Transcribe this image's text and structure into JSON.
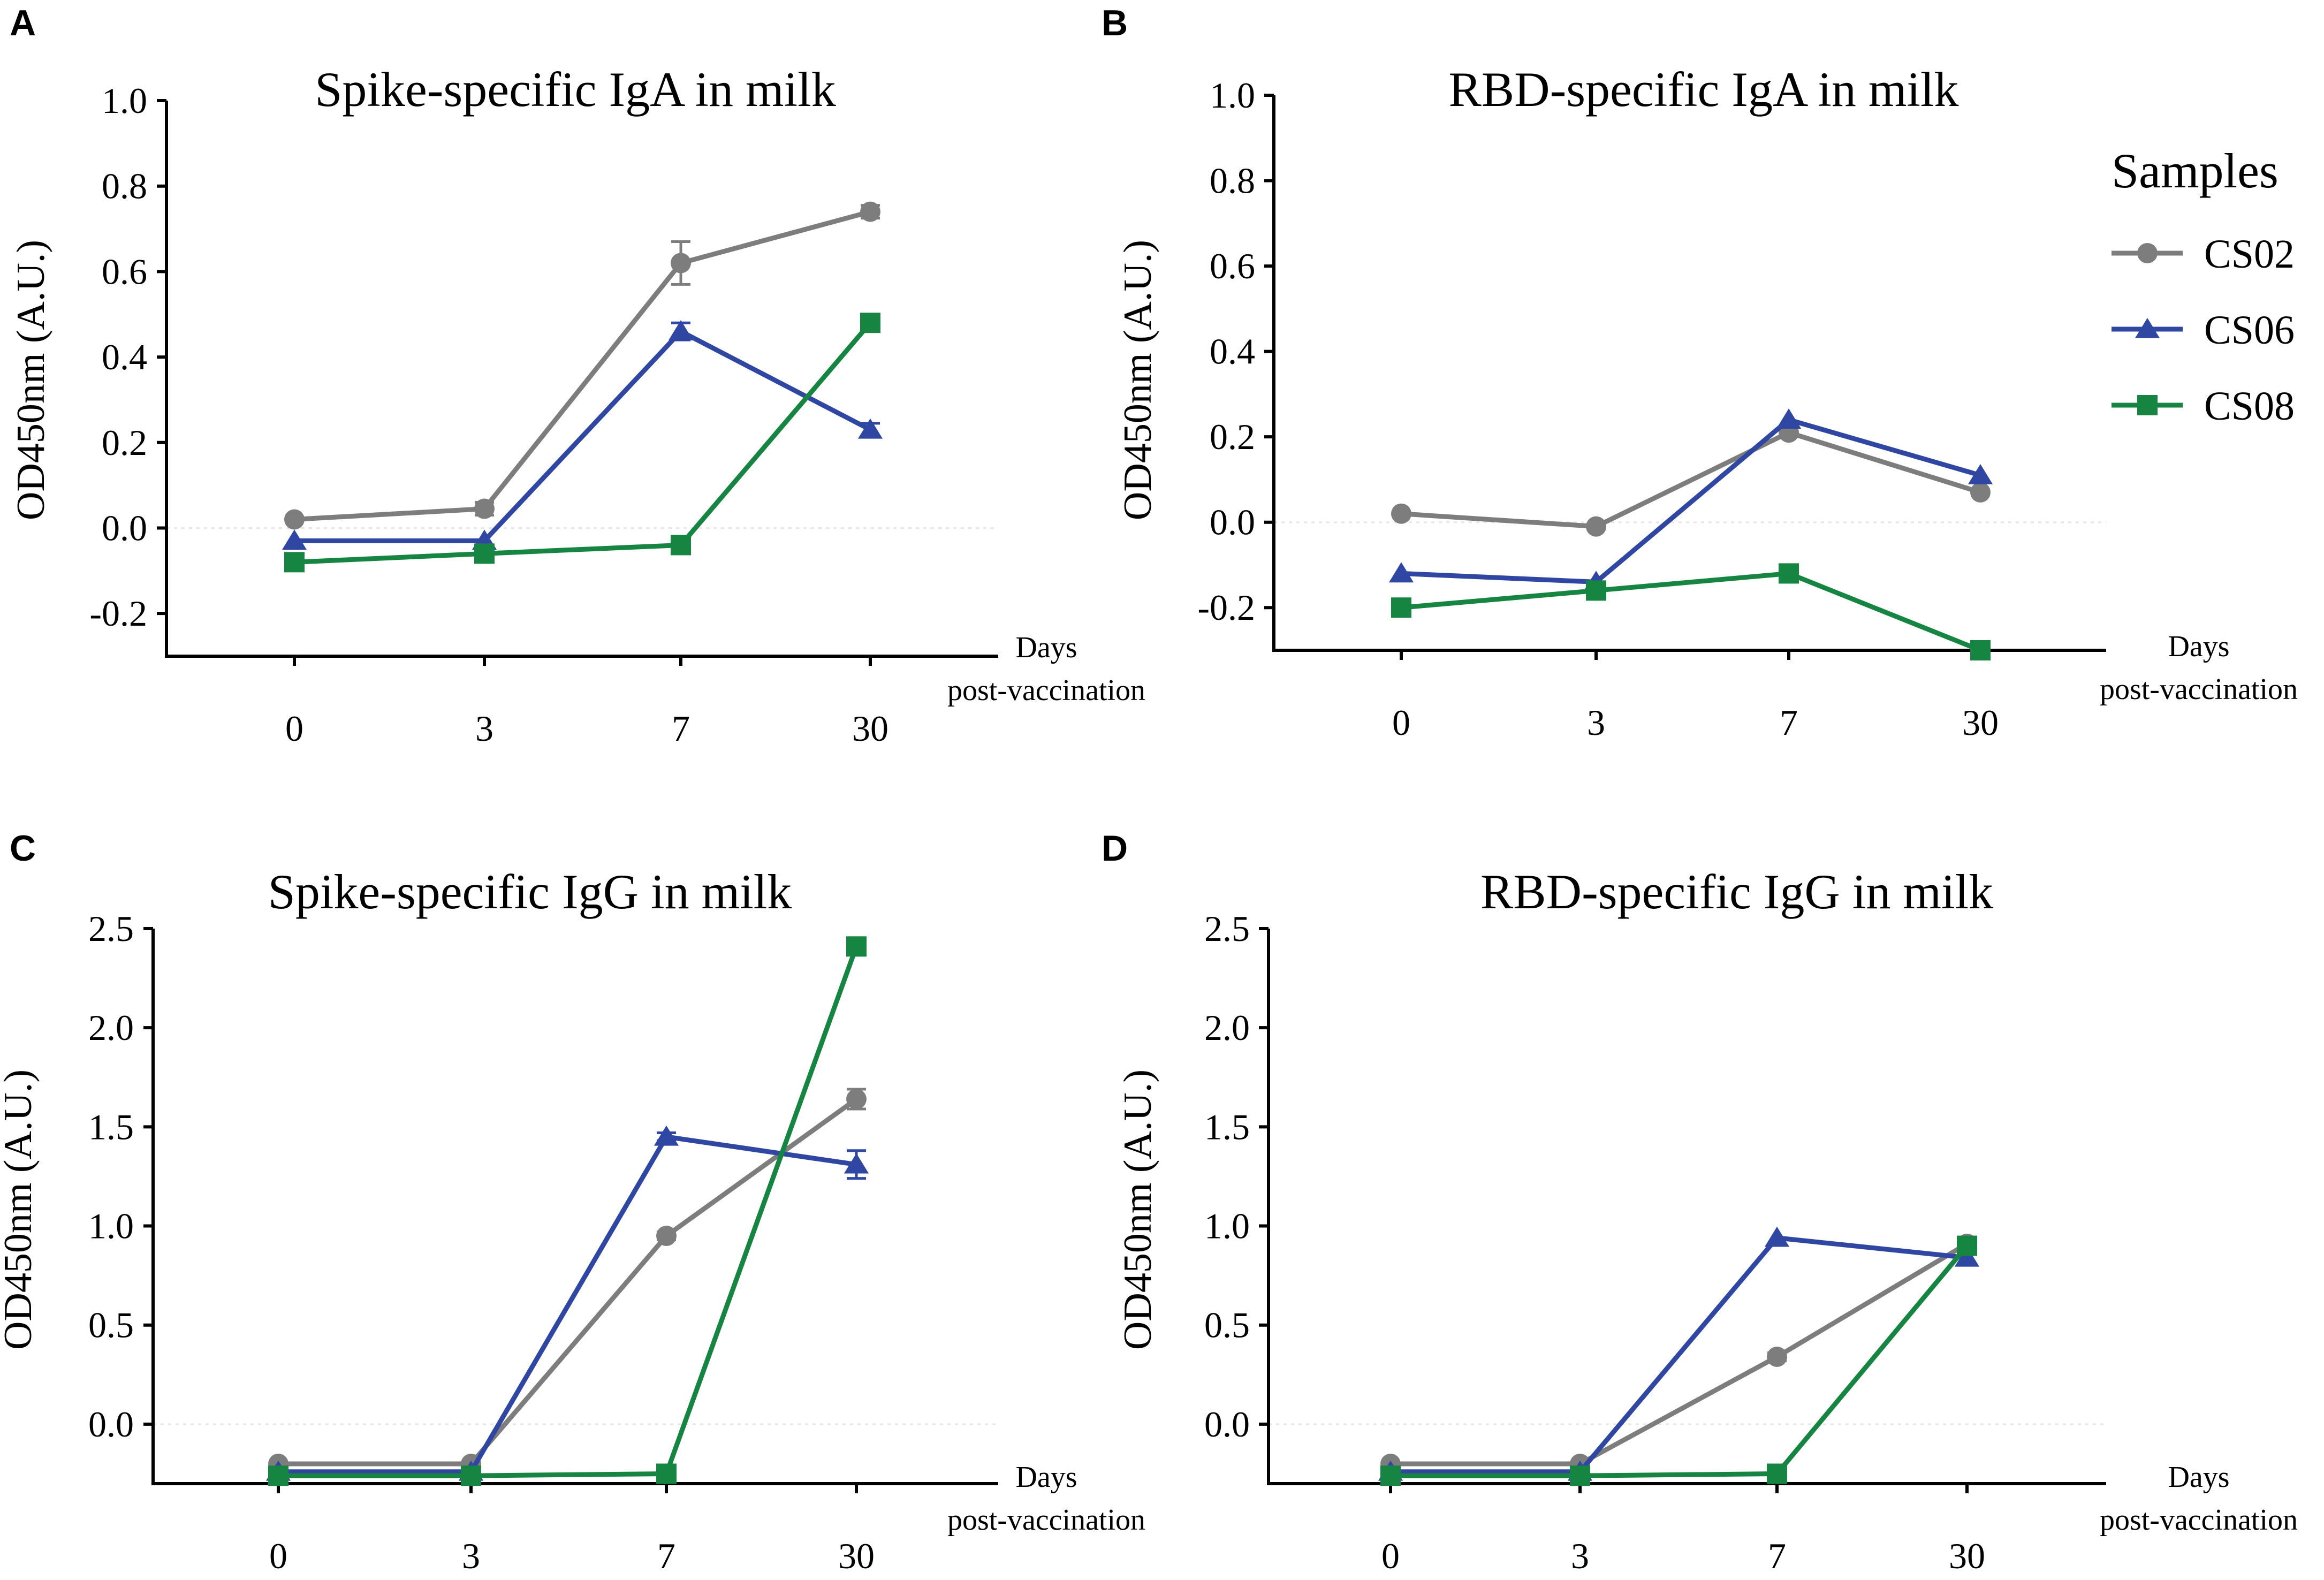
{
  "colors": {
    "CS02": "#7d7d7d",
    "CS06": "#2f46a3",
    "CS08": "#178542"
  },
  "legend": {
    "title": "Samples",
    "entries": [
      "CS02",
      "CS06",
      "CS08"
    ],
    "position": "right"
  },
  "chart_data": [
    {
      "panel": "A",
      "type": "line",
      "title": "Spike-specific IgA in milk",
      "ylabel": "OD450nm (A.U.)",
      "xlabel": [
        "Days",
        "post-vaccination"
      ],
      "categories": [
        "0",
        "3",
        "7",
        "30"
      ],
      "ylim": [
        -0.3,
        1.0
      ],
      "yticks": [
        "-0.2",
        "0.0",
        "0.2",
        "0.4",
        "0.6",
        "0.8",
        "1.0"
      ],
      "series": [
        {
          "name": "CS02",
          "marker": "circle",
          "values": [
            0.02,
            0.045,
            0.62,
            0.74
          ],
          "errors": [
            0.0,
            0.015,
            0.05,
            0.015
          ]
        },
        {
          "name": "CS06",
          "marker": "triangle",
          "values": [
            -0.03,
            -0.03,
            0.46,
            0.23
          ],
          "errors": [
            0.0,
            0.0,
            0.02,
            0.015
          ]
        },
        {
          "name": "CS08",
          "marker": "square",
          "values": [
            -0.08,
            -0.06,
            -0.04,
            0.48
          ],
          "errors": [
            0.0,
            0.0,
            0.0,
            0.0
          ]
        }
      ]
    },
    {
      "panel": "B",
      "type": "line",
      "title": "RBD-specific IgA in milk",
      "ylabel": "OD450nm (A.U.)",
      "xlabel": [
        "Days",
        "post-vaccination"
      ],
      "categories": [
        "0",
        "3",
        "7",
        "30"
      ],
      "ylim": [
        -0.3,
        1.0
      ],
      "yticks": [
        "-0.2",
        "0.0",
        "0.2",
        "0.4",
        "0.6",
        "0.8",
        "1.0"
      ],
      "series": [
        {
          "name": "CS02",
          "marker": "circle",
          "values": [
            0.02,
            -0.01,
            0.21,
            0.07
          ],
          "errors": [
            0.0,
            0.0,
            0.0,
            0.0
          ]
        },
        {
          "name": "CS06",
          "marker": "triangle",
          "values": [
            -0.12,
            -0.14,
            0.24,
            0.11
          ],
          "errors": [
            0.0,
            0.0,
            0.0,
            0.0
          ]
        },
        {
          "name": "CS08",
          "marker": "square",
          "values": [
            -0.2,
            -0.16,
            -0.12,
            -0.3
          ],
          "errors": [
            0.0,
            0.0,
            0.0,
            0.0
          ]
        }
      ]
    },
    {
      "panel": "C",
      "type": "line",
      "title": "Spike-specific IgG in milk",
      "ylabel": "OD450nm (A.U.)",
      "xlabel": [
        "Days",
        "post-vaccination"
      ],
      "categories": [
        "0",
        "3",
        "7",
        "30"
      ],
      "ylim": [
        -0.3,
        2.5
      ],
      "yticks": [
        "0.0",
        "0.5",
        "1.0",
        "1.5",
        "2.0",
        "2.5"
      ],
      "series": [
        {
          "name": "CS02",
          "marker": "circle",
          "values": [
            -0.2,
            -0.2,
            0.95,
            1.64
          ],
          "errors": [
            0.0,
            0.0,
            0.02,
            0.05
          ]
        },
        {
          "name": "CS06",
          "marker": "triangle",
          "values": [
            -0.24,
            -0.24,
            1.45,
            1.31
          ],
          "errors": [
            0.0,
            0.0,
            0.02,
            0.07
          ]
        },
        {
          "name": "CS08",
          "marker": "square",
          "values": [
            -0.26,
            -0.26,
            -0.25,
            2.41
          ],
          "errors": [
            0.0,
            0.0,
            0.0,
            0.0
          ]
        }
      ]
    },
    {
      "panel": "D",
      "type": "line",
      "title": "RBD-specific IgG in milk",
      "ylabel": "OD450nm (A.U.)",
      "xlabel": [
        "Days",
        "post-vaccination"
      ],
      "categories": [
        "0",
        "3",
        "7",
        "30"
      ],
      "ylim": [
        -0.3,
        2.5
      ],
      "yticks": [
        "0.0",
        "0.5",
        "1.0",
        "1.5",
        "2.0",
        "2.5"
      ],
      "series": [
        {
          "name": "CS02",
          "marker": "circle",
          "values": [
            -0.2,
            -0.2,
            0.34,
            0.91
          ],
          "errors": [
            0.0,
            0.0,
            0.02,
            0.0
          ]
        },
        {
          "name": "CS06",
          "marker": "triangle",
          "values": [
            -0.24,
            -0.24,
            0.94,
            0.84
          ],
          "errors": [
            0.0,
            0.0,
            0.0,
            0.0
          ]
        },
        {
          "name": "CS08",
          "marker": "square",
          "values": [
            -0.26,
            -0.26,
            -0.25,
            0.9
          ],
          "errors": [
            0.0,
            0.0,
            0.0,
            0.0
          ]
        }
      ]
    }
  ]
}
